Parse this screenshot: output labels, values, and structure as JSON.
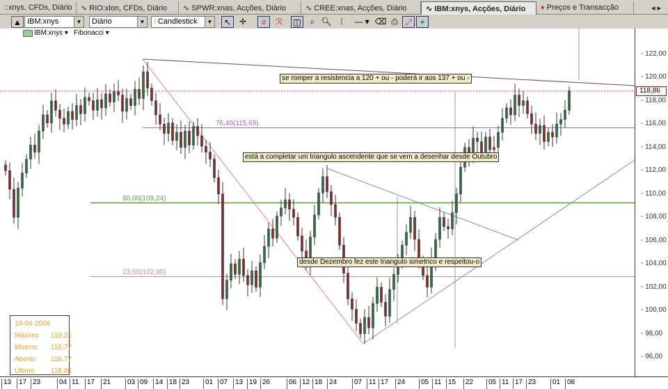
{
  "tabs": [
    {
      "label": "::xnys, CFDs, Diário",
      "active": false
    },
    {
      "label": "RIO:xlon, CFDs, Diário",
      "active": false
    },
    {
      "label": "SPWR:xnas, Acções, Diário",
      "active": false
    },
    {
      "label": "CREE:xnas, Acções, Diário",
      "active": false
    },
    {
      "label": "IBM:xnys, Acções, Diário",
      "active": true
    },
    {
      "label": "Preços e Transacção",
      "active": false
    }
  ],
  "toolbar": {
    "symbol": "IBM:xnys",
    "period": "Diário",
    "chart_type": "Candlestick"
  },
  "legend": {
    "symbol": "IBM:xnys",
    "indicator": "Fibonacci"
  },
  "price_axis": {
    "ticks": [
      "122,00",
      "120,00",
      "118,00",
      "116,00",
      "114,00",
      "112,00",
      "110,00",
      "108,00",
      "106,00",
      "104,00",
      "102,00",
      "100,00",
      "98,00",
      "96,00"
    ],
    "current": "118,86"
  },
  "fibonacci": [
    {
      "label": "76,40(115,69)",
      "price": 115.69,
      "color": "#9a6aa8"
    },
    {
      "label": "60,00(109,24)",
      "price": 109.24,
      "color": "#5aa040"
    },
    {
      "label": "23,60(102,90)",
      "price": 102.9,
      "color": "#c89090"
    }
  ],
  "notes": [
    "se romper a resistencia a 120 + ou - poderá ir aos 137 + ou -",
    "está a completar um triangulo ascendente que se vem a desenhar desde Outubro",
    "desde Dezembro fez este triangulo simetrico e respeitou-o"
  ],
  "info": {
    "date": "10-04-2008",
    "rows": [
      {
        "label": "Máximo",
        "value": "119,21"
      },
      {
        "label": "Mínimo",
        "value": "116,77"
      },
      {
        "label": "Aberto",
        "value": "116,77"
      },
      {
        "label": "Último",
        "value": "118,86"
      }
    ]
  },
  "dates": [
    "13",
    "17",
    "23",
    "04",
    "11",
    "17",
    "21",
    "03",
    "09",
    "14",
    "18",
    "23",
    "01",
    "07",
    "13",
    "19",
    "26",
    "06",
    "12",
    "18",
    "24",
    "07",
    "11",
    "17",
    "24",
    "05",
    "11",
    "15",
    "22",
    "05",
    "11",
    "17",
    "23",
    "01",
    "08"
  ],
  "colors": {
    "up": "#2f6e3f",
    "down": "#8a2828",
    "resistance": "#e04040"
  },
  "chart_data": {
    "type": "candlestick",
    "ylim": [
      95,
      123
    ],
    "closes": [
      112,
      110.4,
      108,
      110.5,
      111.8,
      113,
      114.2,
      113.6,
      115.4,
      116.8,
      116.1,
      118,
      117.2,
      116.5,
      116,
      117.1,
      116.4,
      117.6,
      116.9,
      118.3,
      118,
      117.2,
      118.1,
      117.4,
      118.6,
      117.9,
      118.8,
      118.5,
      117.1,
      118.2,
      117.6,
      119,
      118.2,
      120.5,
      119.1,
      118,
      116.8,
      116,
      115.2,
      116.1,
      114.6,
      115.3,
      114,
      115.4,
      114.2,
      115.8,
      115,
      114.1,
      113.6,
      113,
      111.4,
      110,
      101,
      102.6,
      104,
      103.1,
      104.4,
      103,
      102.2,
      103.4,
      102,
      104.1,
      105.5,
      107,
      106.2,
      108.1,
      108.8,
      109.5,
      108.7,
      108,
      106.4,
      105.1,
      104,
      106.3,
      108.2,
      110.1,
      111.5,
      110.2,
      109.1,
      108,
      105.6,
      103.2,
      101,
      100.1,
      98.9,
      98,
      99.4,
      98.5,
      100.6,
      102,
      100.7,
      99.5,
      101.8,
      103.1,
      104,
      105.6,
      106.7,
      108,
      106.1,
      104.3,
      103,
      102,
      104.4,
      106.1,
      108,
      107.2,
      107,
      108.4,
      110,
      112.3,
      114,
      113.2,
      114.8,
      114.5,
      113.6,
      114.9,
      113.8,
      114,
      115.3,
      116.5,
      117.4,
      116.8,
      118.5,
      117.6,
      118,
      116.9,
      116,
      115.2,
      115.9,
      114.5,
      115.3,
      114.9,
      116,
      116.4,
      117.2,
      118.86
    ]
  }
}
